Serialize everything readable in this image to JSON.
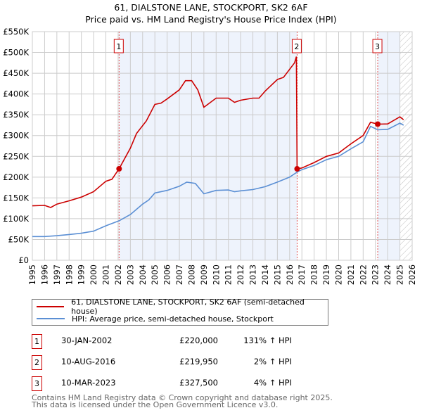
{
  "title_line1": "61, DIALSTONE LANE, STOCKPORT, SK2 6AF",
  "title_line2": "Price paid vs. HM Land Registry's House Price Index (HPI)",
  "chart_data": {
    "type": "line",
    "title": "61, DIALSTONE LANE, STOCKPORT, SK2 6AF — Price paid vs. HM Land Registry's House Price Index (HPI)",
    "xlim": [
      1995,
      2026
    ],
    "ylim": [
      0,
      550000
    ],
    "x_ticks": [
      "1995",
      "1996",
      "1997",
      "1998",
      "1999",
      "2000",
      "2001",
      "2002",
      "2003",
      "2004",
      "2005",
      "2006",
      "2007",
      "2008",
      "2009",
      "2010",
      "2011",
      "2012",
      "2013",
      "2014",
      "2015",
      "2016",
      "2017",
      "2018",
      "2019",
      "2020",
      "2021",
      "2022",
      "2023",
      "2024",
      "2025",
      "2026"
    ],
    "y_ticks": [
      {
        "v": 0,
        "label": "£0"
      },
      {
        "v": 50000,
        "label": "£50K"
      },
      {
        "v": 100000,
        "label": "£100K"
      },
      {
        "v": 150000,
        "label": "£150K"
      },
      {
        "v": 200000,
        "label": "£200K"
      },
      {
        "v": 250000,
        "label": "£250K"
      },
      {
        "v": 300000,
        "label": "£300K"
      },
      {
        "v": 350000,
        "label": "£350K"
      },
      {
        "v": 400000,
        "label": "£400K"
      },
      {
        "v": 450000,
        "label": "£450K"
      },
      {
        "v": 500000,
        "label": "£500K"
      },
      {
        "v": 550000,
        "label": "£550K"
      }
    ],
    "grid": true,
    "shaded_periods": [
      [
        2002.08,
        2016.61
      ],
      [
        2023.19,
        2025.0
      ]
    ],
    "future_hatch_from": 2025.0,
    "series": [
      {
        "name": "61, DIALSTONE LANE, STOCKPORT, SK2 6AF (semi-detached house)",
        "color": "#cc0000",
        "x": [
          1995,
          1996,
          1996.5,
          1997,
          1998,
          1999,
          2000,
          2001,
          2001.5,
          2002.08,
          2003,
          2003.5,
          2004.3,
          2005,
          2005.5,
          2006,
          2007,
          2007.5,
          2008,
          2008.5,
          2009,
          2010,
          2011,
          2011.5,
          2012,
          2013,
          2013.5,
          2014,
          2015,
          2015.5,
          2016.4,
          2016.55,
          2016.61,
          2017,
          2018,
          2019,
          2020,
          2021,
          2022,
          2022.6,
          2023.19,
          2024,
          2025,
          2025.3
        ],
        "y": [
          131000,
          132000,
          127000,
          135000,
          143000,
          152000,
          165000,
          190000,
          195000,
          220000,
          270000,
          305000,
          335000,
          375000,
          378000,
          388000,
          410000,
          432000,
          432000,
          410000,
          368000,
          390000,
          390000,
          380000,
          385000,
          390000,
          390000,
          407000,
          435000,
          440000,
          475000,
          490000,
          220000,
          222000,
          235000,
          250000,
          258000,
          280000,
          300000,
          332000,
          327500,
          328000,
          345000,
          338000
        ]
      },
      {
        "name": "HPI: Average price, semi-detached house, Stockport",
        "color": "#5b8fd4",
        "x": [
          1995,
          1996,
          1997,
          1998,
          1999,
          2000,
          2001,
          2002.08,
          2003,
          2004,
          2004.5,
          2005,
          2006,
          2007,
          2007.6,
          2008.3,
          2009,
          2010,
          2011,
          2011.5,
          2012,
          2013,
          2014,
          2015,
          2016,
          2016.61,
          2017,
          2018,
          2019,
          2020,
          2021,
          2022,
          2022.6,
          2023.19,
          2024,
          2025,
          2025.3
        ],
        "y": [
          57000,
          57000,
          59000,
          62000,
          65000,
          70000,
          83000,
          95000,
          110000,
          135000,
          145000,
          162000,
          168000,
          178000,
          188000,
          185000,
          160000,
          168000,
          169000,
          165000,
          167000,
          170000,
          177000,
          188000,
          200000,
          212000,
          218000,
          228000,
          242000,
          250000,
          268000,
          285000,
          322000,
          314000,
          315000,
          330000,
          325000
        ]
      }
    ],
    "sales": [
      {
        "num": "1",
        "x": 2002.08,
        "y": 220000
      },
      {
        "num": "2",
        "x": 2016.61,
        "y": 219950
      },
      {
        "num": "3",
        "x": 2023.19,
        "y": 327500
      }
    ]
  },
  "legend": {
    "property": "61, DIALSTONE LANE, STOCKPORT, SK2 6AF (semi-detached house)",
    "hpi": "HPI: Average price, semi-detached house, Stockport"
  },
  "sales_table": [
    {
      "num": "1",
      "date": "30-JAN-2002",
      "price": "£220,000",
      "pct": "131% ↑ HPI"
    },
    {
      "num": "2",
      "date": "10-AUG-2016",
      "price": "£219,950",
      "pct": "2% ↑ HPI"
    },
    {
      "num": "3",
      "date": "10-MAR-2023",
      "price": "£327,500",
      "pct": "4% ↑ HPI"
    }
  ],
  "footer_line1": "Contains HM Land Registry data © Crown copyright and database right 2025.",
  "footer_line2": "This data is licensed under the Open Government Licence v3.0."
}
